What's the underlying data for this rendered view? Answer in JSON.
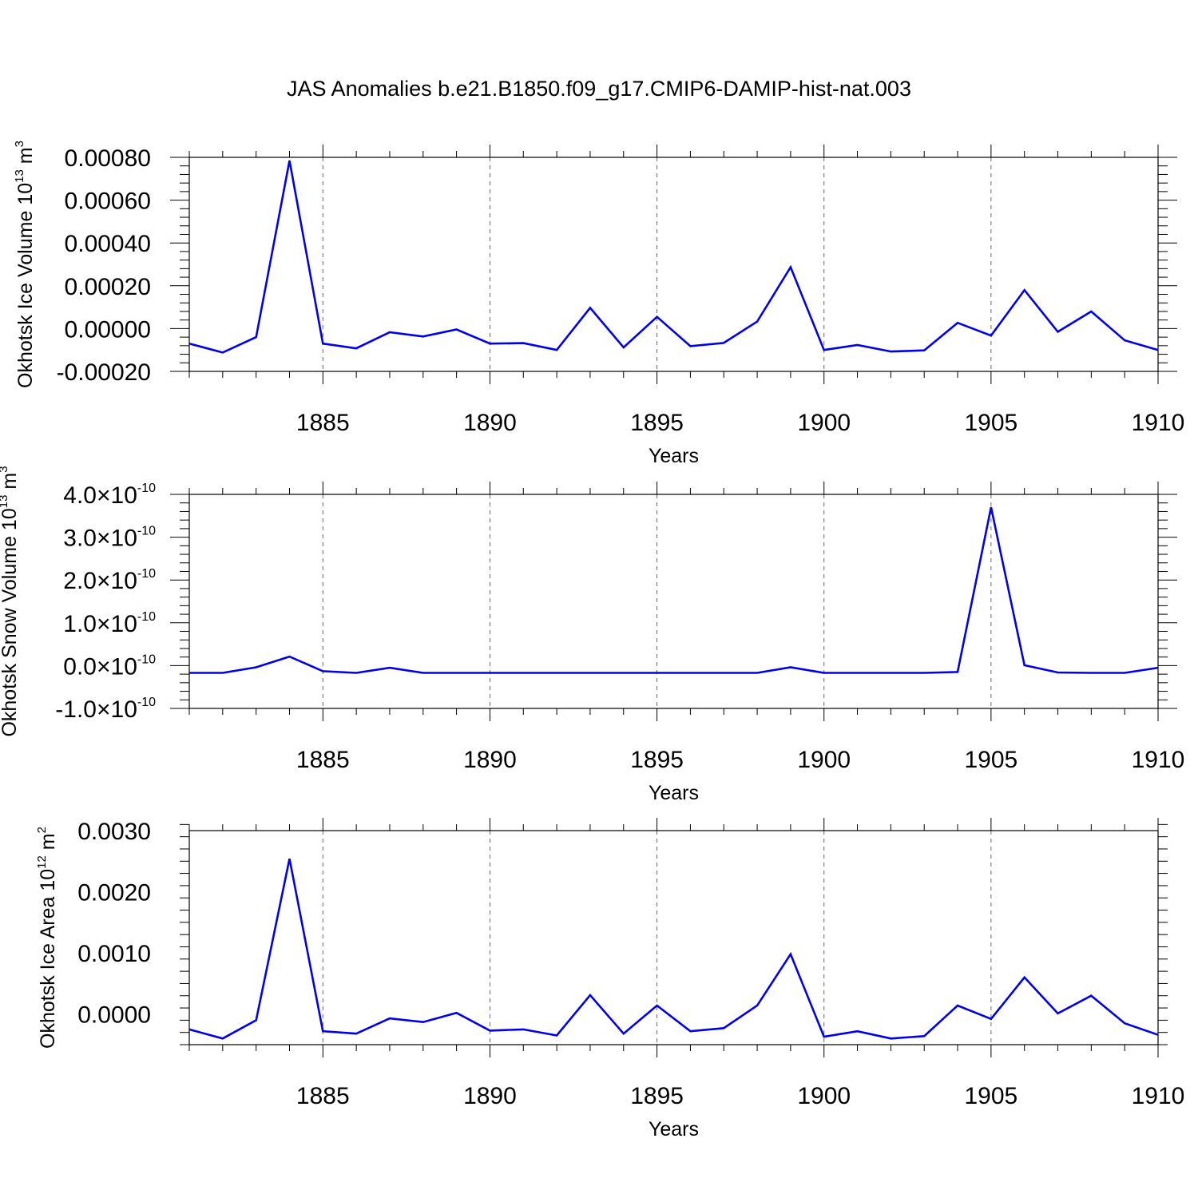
{
  "title": "JAS Anomalies b.e21.B1850.f09_g17.CMIP6-DAMIP-hist-nat.003",
  "line_color": "#0000ee",
  "chart_data": [
    {
      "type": "line",
      "ylabel": "Okhotsk Ice Volume 10",
      "ylabel_sup": "13",
      "ylabel_unit": "m",
      "ylabel_unit_sup": "3",
      "xlabel": "Years",
      "xlim": [
        1881,
        1910
      ],
      "ylim": [
        -0.0002,
        0.0008
      ],
      "yticks": [
        -0.0002,
        0.0,
        0.0002,
        0.0004,
        0.0006,
        0.0008
      ],
      "ytick_labels": [
        "-0.00020",
        "0.00000",
        "0.00020",
        "0.00040",
        "0.00060",
        "0.00080"
      ],
      "xticks": [
        1885,
        1890,
        1895,
        1900,
        1905,
        1910
      ],
      "xtick_labels": [
        "1885",
        "1890",
        "1895",
        "1900",
        "1905",
        "1910"
      ],
      "x": [
        1881,
        1882,
        1883,
        1884,
        1885,
        1886,
        1887,
        1888,
        1889,
        1890,
        1891,
        1892,
        1893,
        1894,
        1895,
        1896,
        1897,
        1898,
        1899,
        1900,
        1901,
        1902,
        1903,
        1904,
        1905,
        1906,
        1907,
        1908,
        1909,
        1910
      ],
      "y": [
        -7e-05,
        -0.000112,
        -4e-05,
        0.000785,
        -7e-05,
        -9.2e-05,
        -1.7e-05,
        -3.7e-05,
        -4e-06,
        -7e-05,
        -6.8e-05,
        -0.0001,
        9.7e-05,
        -8.8e-05,
        5.5e-05,
        -8.2e-05,
        -6.7e-05,
        3.3e-05,
        0.000287,
        -0.0001,
        -7.7e-05,
        -0.000107,
        -0.000102,
        2.7e-05,
        -3.3e-05,
        0.00018,
        -1.5e-05,
        8e-05,
        -5.5e-05,
        -0.0001
      ]
    },
    {
      "type": "line",
      "ylabel": "Okhotsk Snow Volume 10",
      "ylabel_sup": "13",
      "ylabel_unit": "m",
      "ylabel_unit_sup": "3",
      "xlabel": "Years",
      "xlim": [
        1881,
        1910
      ],
      "ylim": [
        -1e-10,
        4e-10
      ],
      "yticks": [
        -1e-10,
        0.0,
        1e-10,
        2e-10,
        3e-10,
        4e-10
      ],
      "ytick_labels": [
        "-1.0",
        "0.0",
        "1.0",
        "2.0",
        "3.0",
        "4.0"
      ],
      "ytick_multiplier": "×10",
      "ytick_exponent": "-10",
      "xticks": [
        1885,
        1890,
        1895,
        1900,
        1905,
        1910
      ],
      "xtick_labels": [
        "1885",
        "1890",
        "1895",
        "1900",
        "1905",
        "1910"
      ],
      "x": [
        1881,
        1882,
        1883,
        1884,
        1885,
        1886,
        1887,
        1888,
        1889,
        1890,
        1891,
        1892,
        1893,
        1894,
        1895,
        1896,
        1897,
        1898,
        1899,
        1900,
        1901,
        1902,
        1903,
        1904,
        1905,
        1906,
        1907,
        1908,
        1909,
        1910
      ],
      "y": [
        -1.7e-11,
        -1.7e-11,
        -4e-12,
        2.1e-11,
        -1.3e-11,
        -1.7e-11,
        -5e-12,
        -1.7e-11,
        -1.7e-11,
        -1.7e-11,
        -1.7e-11,
        -1.7e-11,
        -1.7e-11,
        -1.7e-11,
        -1.7e-11,
        -1.7e-11,
        -1.7e-11,
        -1.7e-11,
        -4e-12,
        -1.7e-11,
        -1.7e-11,
        -1.7e-11,
        -1.7e-11,
        -1.5e-11,
        3.7e-10,
        1e-12,
        -1.6e-11,
        -1.7e-11,
        -1.7e-11,
        -5e-12
      ]
    },
    {
      "type": "line",
      "ylabel": "Okhotsk Ice Area 10",
      "ylabel_sup": "12",
      "ylabel_unit": "m",
      "ylabel_unit_sup": "2",
      "xlabel": "Years",
      "xlim": [
        1881,
        1910
      ],
      "ylim": [
        -0.0005,
        0.003
      ],
      "yticks": [
        0.0,
        0.001,
        0.002,
        0.003
      ],
      "ytick_labels": [
        "0.0000",
        "0.0010",
        "0.0020",
        "0.0030"
      ],
      "xticks": [
        1885,
        1890,
        1895,
        1900,
        1905,
        1910
      ],
      "xtick_labels": [
        "1885",
        "1890",
        "1895",
        "1900",
        "1905",
        "1910"
      ],
      "x": [
        1881,
        1882,
        1883,
        1884,
        1885,
        1886,
        1887,
        1888,
        1889,
        1890,
        1891,
        1892,
        1893,
        1894,
        1895,
        1896,
        1897,
        1898,
        1899,
        1900,
        1901,
        1902,
        1903,
        1904,
        1905,
        1906,
        1907,
        1908,
        1909,
        1910
      ],
      "y": [
        -0.00025,
        -0.0004,
        -0.0001,
        0.00254,
        -0.00028,
        -0.00032,
        -7e-05,
        -0.00013,
        2e-05,
        -0.00027,
        -0.00025,
        -0.00035,
        0.00031,
        -0.00032,
        0.00014,
        -0.00028,
        -0.00023,
        0.00014,
        0.00098,
        -0.00037,
        -0.00028,
        -0.0004,
        -0.00036,
        0.00014,
        -8e-05,
        0.0006,
        1e-05,
        0.0003,
        -0.00015,
        -0.00034
      ]
    }
  ]
}
